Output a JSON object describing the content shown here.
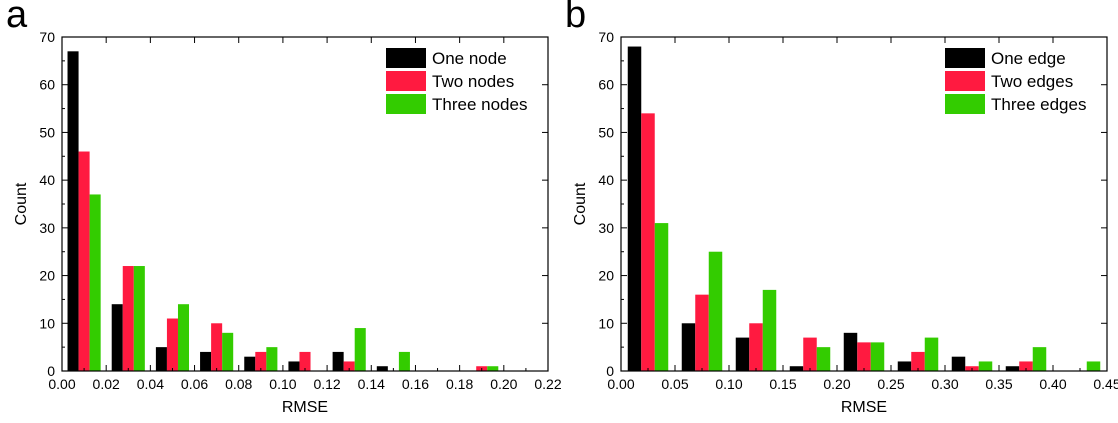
{
  "chart_data": [
    {
      "panel": "a",
      "type": "bar",
      "xlabel": "RMSE",
      "ylabel": "Count",
      "xlim": [
        0,
        0.22
      ],
      "ylim": [
        0,
        70
      ],
      "xticks": [
        0.0,
        0.02,
        0.04,
        0.06,
        0.08,
        0.1,
        0.12,
        0.14,
        0.16,
        0.18,
        0.2,
        0.22
      ],
      "xtick_labels": [
        "0.00",
        "0.02",
        "0.04",
        "0.06",
        "0.08",
        "0.10",
        "0.12",
        "0.14",
        "0.16",
        "0.18",
        "0.20",
        "0.22"
      ],
      "yticks": [
        0,
        10,
        20,
        30,
        40,
        50,
        60,
        70
      ],
      "ytick_labels": [
        "0",
        "10",
        "20",
        "30",
        "40",
        "50",
        "60",
        "70"
      ],
      "categories": [
        0.01,
        0.03,
        0.05,
        0.07,
        0.09,
        0.11,
        0.13,
        0.15,
        0.17,
        0.19
      ],
      "bin_width": 0.02,
      "series": [
        {
          "name": "One node",
          "color": "#000000",
          "values": [
            67,
            14,
            5,
            4,
            3,
            2,
            4,
            1,
            0,
            0
          ]
        },
        {
          "name": "Two nodes",
          "color": "#ff1a40",
          "values": [
            46,
            22,
            11,
            10,
            4,
            4,
            2,
            0,
            0,
            1
          ]
        },
        {
          "name": "Three nodes",
          "color": "#33cc00",
          "values": [
            37,
            22,
            14,
            8,
            5,
            0,
            9,
            4,
            0,
            1
          ]
        }
      ],
      "legend_position": "top-right",
      "grid": false
    },
    {
      "panel": "b",
      "type": "bar",
      "xlabel": "RMSE",
      "ylabel": "Count",
      "xlim": [
        0,
        0.45
      ],
      "ylim": [
        0,
        70
      ],
      "xticks": [
        0.0,
        0.05,
        0.1,
        0.15,
        0.2,
        0.25,
        0.3,
        0.35,
        0.4,
        0.45
      ],
      "xtick_labels": [
        "0.00",
        "0.05",
        "0.10",
        "0.15",
        "0.20",
        "0.25",
        "0.30",
        "0.35",
        "0.40",
        "0.45"
      ],
      "yticks": [
        0,
        10,
        20,
        30,
        40,
        50,
        60,
        70
      ],
      "ytick_labels": [
        "0",
        "10",
        "20",
        "30",
        "40",
        "50",
        "60",
        "70"
      ],
      "categories": [
        0.025,
        0.075,
        0.125,
        0.175,
        0.225,
        0.275,
        0.325,
        0.375,
        0.425
      ],
      "bin_width": 0.05,
      "series": [
        {
          "name": "One edge",
          "color": "#000000",
          "values": [
            68,
            10,
            7,
            1,
            8,
            2,
            3,
            1,
            0
          ]
        },
        {
          "name": "Two edges",
          "color": "#ff1a40",
          "values": [
            54,
            16,
            10,
            7,
            6,
            4,
            1,
            2,
            0
          ]
        },
        {
          "name": "Three edges",
          "color": "#33cc00",
          "values": [
            31,
            25,
            17,
            5,
            6,
            7,
            2,
            5,
            2
          ]
        }
      ],
      "legend_position": "top-right",
      "grid": false
    }
  ],
  "panels": {
    "a": {
      "letter": "a"
    },
    "b": {
      "letter": "b"
    }
  }
}
